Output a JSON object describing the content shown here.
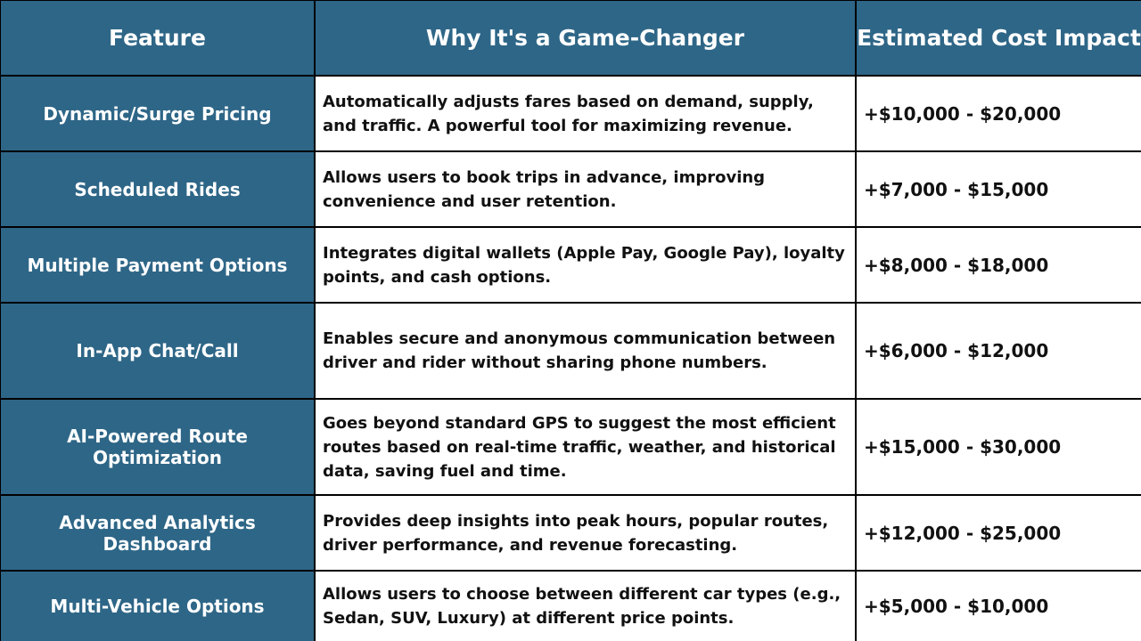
{
  "headers": {
    "feature": "Feature",
    "why": "Why It's a Game-Changer",
    "cost": "Estimated Cost Impact"
  },
  "rows": [
    {
      "feature": "Dynamic/Surge Pricing",
      "why": "Automatically adjusts fares based on demand, supply, and traffic. A powerful tool for maximizing revenue.",
      "cost": "+$10,000 - $20,000"
    },
    {
      "feature": "Scheduled Rides",
      "why": "Allows users to book trips in advance, improving convenience and user retention.",
      "cost": "+$7,000 - $15,000"
    },
    {
      "feature": "Multiple Payment Options",
      "why": "Integrates digital wallets (Apple Pay, Google Pay), loyalty points, and cash options.",
      "cost": "+$8,000 - $18,000"
    },
    {
      "feature": "In-App Chat/Call",
      "why": "Enables secure and anonymous communication between driver and rider without sharing phone numbers.",
      "cost": "+$6,000 - $12,000"
    },
    {
      "feature": "AI-Powered Route Optimization",
      "why": "Goes beyond standard GPS to suggest the most efficient routes based on real-time traffic, weather, and historical data, saving fuel and time.",
      "cost": "+$15,000 - $30,000"
    },
    {
      "feature": "Advanced Analytics Dashboard",
      "why": "Provides deep insights into peak hours, popular routes, driver performance, and revenue forecasting.",
      "cost": "+$12,000 - $25,000"
    },
    {
      "feature": "Multi-Vehicle Options",
      "why": "Allows users to choose between different car types (e.g., Sedan, SUV, Luxury) at different price points.",
      "cost": "+$5,000 - $10,000"
    }
  ]
}
